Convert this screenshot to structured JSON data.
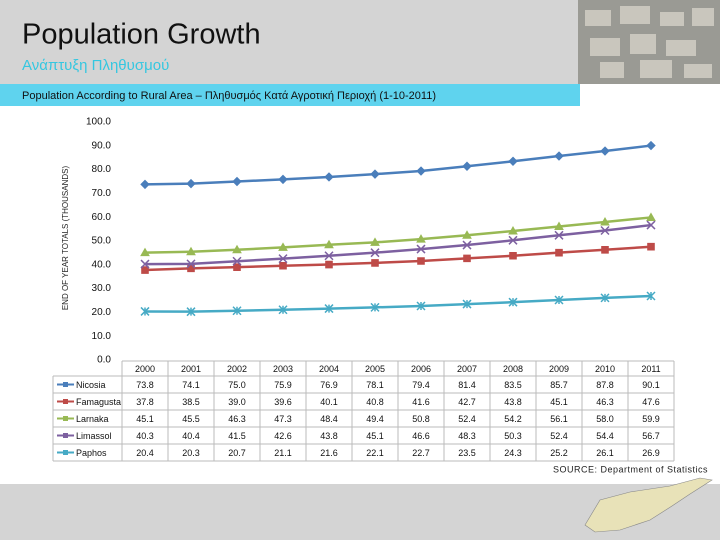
{
  "header": {
    "title": "Population Growth",
    "subtitle": "Ανάπτυξη Πληθυσμού",
    "banner": "Population According to Rural Area – Πληθυσμός Κατά Αγροτική Περιοχή (1-10-2011)"
  },
  "chart_data": {
    "type": "line",
    "y_label": "END OF YEAR TOTALS (THOUSANDS)",
    "categories": [
      "2000",
      "2001",
      "2002",
      "2003",
      "2004",
      "2005",
      "2006",
      "2007",
      "2008",
      "2009",
      "2010",
      "2011"
    ],
    "series": [
      {
        "name": "Nicosia",
        "color": "#4a7ebb",
        "marker": "diamond",
        "values": [
          73.8,
          74.1,
          75.0,
          75.9,
          76.9,
          78.1,
          79.4,
          81.4,
          83.5,
          85.7,
          87.8,
          90.1
        ],
        "value_labels": [
          "73.8",
          "74.1",
          "75.0",
          "75.9",
          "76.9",
          "78.1",
          "79.4",
          "81.4",
          "83.5",
          "85.7",
          "87.8",
          "90.1"
        ]
      },
      {
        "name": "Famagusta",
        "color": "#be4b48",
        "marker": "square",
        "values": [
          37.8,
          38.5,
          39.0,
          39.6,
          40.1,
          40.8,
          41.6,
          42.7,
          43.8,
          45.1,
          46.3,
          47.6
        ],
        "value_labels": [
          "37.8",
          "38.5",
          "39.0",
          "39.6",
          "40.1",
          "40.8",
          "41.6",
          "42.7",
          "43.8",
          "45.1",
          "46.3",
          "47.6"
        ]
      },
      {
        "name": "Larnaka",
        "color": "#98b954",
        "marker": "triangle",
        "values": [
          45.1,
          45.5,
          46.3,
          47.3,
          48.4,
          49.4,
          50.8,
          52.4,
          54.2,
          56.1,
          58.0,
          59.9
        ],
        "value_labels": [
          "45.1",
          "45.5",
          "46.3",
          "47.3",
          "48.4",
          "49.4",
          "50.8",
          "52.4",
          "54.2",
          "56.1",
          "58.0",
          "59.9"
        ]
      },
      {
        "name": "Limassol",
        "color": "#7d60a0",
        "marker": "x",
        "values": [
          40.3,
          40.4,
          41.5,
          42.6,
          43.8,
          45.1,
          46.6,
          48.3,
          50.3,
          52.4,
          54.4,
          56.7
        ],
        "value_labels": [
          "40.3",
          "40.4",
          "41.5",
          "42.6",
          "43.8",
          "45.1",
          "46.6",
          "48.3",
          "50.3",
          "52.4",
          "54.4",
          "56.7"
        ]
      },
      {
        "name": "Paphos",
        "color": "#46aac5",
        "marker": "star",
        "values": [
          20.4,
          20.3,
          20.7,
          21.1,
          21.6,
          22.1,
          22.7,
          23.5,
          24.3,
          25.2,
          26.1,
          26.9
        ],
        "value_labels": [
          "20.4",
          "20.3",
          "20.7",
          "21.1",
          "21.6",
          "22.1",
          "22.7",
          "23.5",
          "24.3",
          "25.2",
          "26.1",
          "26.9"
        ]
      }
    ],
    "ylim": [
      0,
      100
    ],
    "yticks": [
      {
        "value": 0,
        "label": "0.0"
      },
      {
        "value": 10,
        "label": "10.0"
      },
      {
        "value": 20,
        "label": "20.0"
      },
      {
        "value": 30,
        "label": "30.0"
      },
      {
        "value": 40,
        "label": "40.0"
      },
      {
        "value": 50,
        "label": "50.0"
      },
      {
        "value": 60,
        "label": "60.0"
      },
      {
        "value": 70,
        "label": "70.0"
      },
      {
        "value": 80,
        "label": "80.0"
      },
      {
        "value": 90,
        "label": "90.0"
      },
      {
        "value": 100,
        "label": "100.0"
      }
    ],
    "grid": false
  },
  "source": "SOURCE: Department of Statistics"
}
